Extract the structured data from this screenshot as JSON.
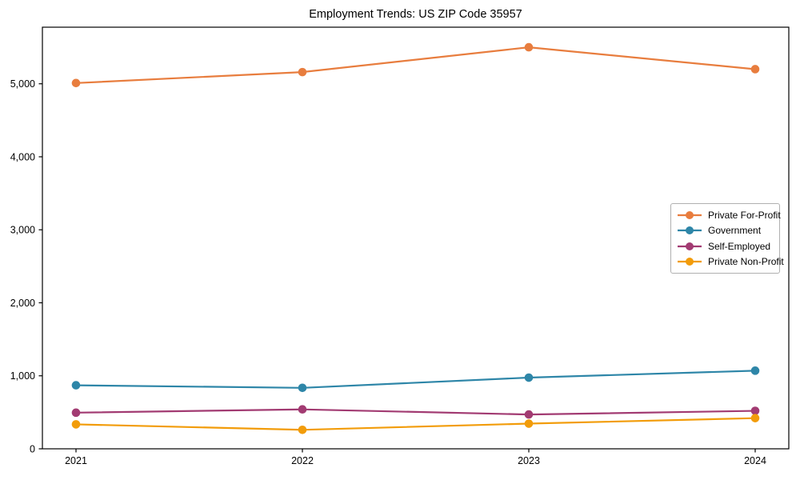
{
  "chart_data": {
    "type": "line",
    "title": "Employment Trends: US ZIP Code 35957",
    "xlabel": "",
    "ylabel": "",
    "x_categories": [
      "2021",
      "2022",
      "2023",
      "2024"
    ],
    "y_ticks": [
      0,
      1000,
      2000,
      3000,
      4000,
      5000
    ],
    "y_tick_labels": [
      "0",
      "1,000",
      "2,000",
      "3,000",
      "4,000",
      "5,000"
    ],
    "ylim": [
      0,
      5775
    ],
    "grid": false,
    "marker": "circle",
    "legend_position": "center-right",
    "series": [
      {
        "name": "Private For-Profit",
        "color": "#E87D3E",
        "values": [
          5010,
          5160,
          5500,
          5200
        ]
      },
      {
        "name": "Government",
        "color": "#2E86A8",
        "values": [
          870,
          835,
          975,
          1070
        ]
      },
      {
        "name": "Self-Employed",
        "color": "#A23B72",
        "values": [
          495,
          540,
          470,
          520
        ]
      },
      {
        "name": "Private Non-Profit",
        "color": "#F29C0A",
        "values": [
          335,
          260,
          345,
          420
        ]
      }
    ]
  },
  "layout_colors": {
    "spine": "#000000",
    "background": "#ffffff",
    "legend_border": "#b0b0b0"
  }
}
